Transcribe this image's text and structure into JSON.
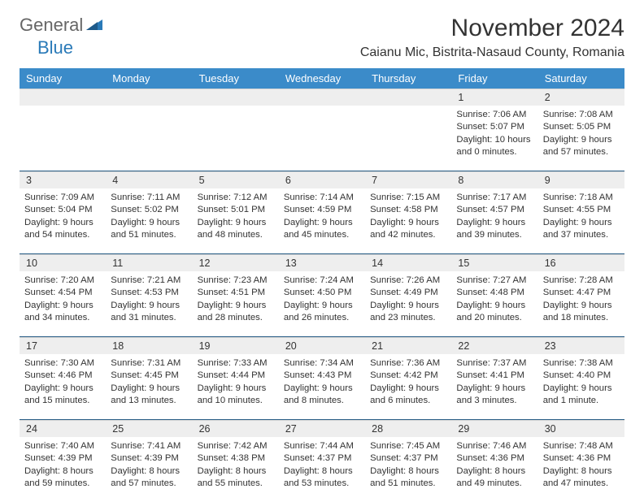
{
  "brand": {
    "part1": "General",
    "part2": "Blue"
  },
  "title": "November 2024",
  "location": "Caianu Mic, Bistrita-Nasaud County, Romania",
  "colors": {
    "header_bg": "#3b8bc9",
    "header_fg": "#ffffff",
    "daynum_bg": "#eeeeee",
    "week_border": "#2a5f88",
    "text": "#333333"
  },
  "day_headers": [
    "Sunday",
    "Monday",
    "Tuesday",
    "Wednesday",
    "Thursday",
    "Friday",
    "Saturday"
  ],
  "weeks": [
    [
      {
        "n": "",
        "sr": "",
        "ss": "",
        "dl": ""
      },
      {
        "n": "",
        "sr": "",
        "ss": "",
        "dl": ""
      },
      {
        "n": "",
        "sr": "",
        "ss": "",
        "dl": ""
      },
      {
        "n": "",
        "sr": "",
        "ss": "",
        "dl": ""
      },
      {
        "n": "",
        "sr": "",
        "ss": "",
        "dl": ""
      },
      {
        "n": "1",
        "sr": "Sunrise: 7:06 AM",
        "ss": "Sunset: 5:07 PM",
        "dl": "Daylight: 10 hours and 0 minutes."
      },
      {
        "n": "2",
        "sr": "Sunrise: 7:08 AM",
        "ss": "Sunset: 5:05 PM",
        "dl": "Daylight: 9 hours and 57 minutes."
      }
    ],
    [
      {
        "n": "3",
        "sr": "Sunrise: 7:09 AM",
        "ss": "Sunset: 5:04 PM",
        "dl": "Daylight: 9 hours and 54 minutes."
      },
      {
        "n": "4",
        "sr": "Sunrise: 7:11 AM",
        "ss": "Sunset: 5:02 PM",
        "dl": "Daylight: 9 hours and 51 minutes."
      },
      {
        "n": "5",
        "sr": "Sunrise: 7:12 AM",
        "ss": "Sunset: 5:01 PM",
        "dl": "Daylight: 9 hours and 48 minutes."
      },
      {
        "n": "6",
        "sr": "Sunrise: 7:14 AM",
        "ss": "Sunset: 4:59 PM",
        "dl": "Daylight: 9 hours and 45 minutes."
      },
      {
        "n": "7",
        "sr": "Sunrise: 7:15 AM",
        "ss": "Sunset: 4:58 PM",
        "dl": "Daylight: 9 hours and 42 minutes."
      },
      {
        "n": "8",
        "sr": "Sunrise: 7:17 AM",
        "ss": "Sunset: 4:57 PM",
        "dl": "Daylight: 9 hours and 39 minutes."
      },
      {
        "n": "9",
        "sr": "Sunrise: 7:18 AM",
        "ss": "Sunset: 4:55 PM",
        "dl": "Daylight: 9 hours and 37 minutes."
      }
    ],
    [
      {
        "n": "10",
        "sr": "Sunrise: 7:20 AM",
        "ss": "Sunset: 4:54 PM",
        "dl": "Daylight: 9 hours and 34 minutes."
      },
      {
        "n": "11",
        "sr": "Sunrise: 7:21 AM",
        "ss": "Sunset: 4:53 PM",
        "dl": "Daylight: 9 hours and 31 minutes."
      },
      {
        "n": "12",
        "sr": "Sunrise: 7:23 AM",
        "ss": "Sunset: 4:51 PM",
        "dl": "Daylight: 9 hours and 28 minutes."
      },
      {
        "n": "13",
        "sr": "Sunrise: 7:24 AM",
        "ss": "Sunset: 4:50 PM",
        "dl": "Daylight: 9 hours and 26 minutes."
      },
      {
        "n": "14",
        "sr": "Sunrise: 7:26 AM",
        "ss": "Sunset: 4:49 PM",
        "dl": "Daylight: 9 hours and 23 minutes."
      },
      {
        "n": "15",
        "sr": "Sunrise: 7:27 AM",
        "ss": "Sunset: 4:48 PM",
        "dl": "Daylight: 9 hours and 20 minutes."
      },
      {
        "n": "16",
        "sr": "Sunrise: 7:28 AM",
        "ss": "Sunset: 4:47 PM",
        "dl": "Daylight: 9 hours and 18 minutes."
      }
    ],
    [
      {
        "n": "17",
        "sr": "Sunrise: 7:30 AM",
        "ss": "Sunset: 4:46 PM",
        "dl": "Daylight: 9 hours and 15 minutes."
      },
      {
        "n": "18",
        "sr": "Sunrise: 7:31 AM",
        "ss": "Sunset: 4:45 PM",
        "dl": "Daylight: 9 hours and 13 minutes."
      },
      {
        "n": "19",
        "sr": "Sunrise: 7:33 AM",
        "ss": "Sunset: 4:44 PM",
        "dl": "Daylight: 9 hours and 10 minutes."
      },
      {
        "n": "20",
        "sr": "Sunrise: 7:34 AM",
        "ss": "Sunset: 4:43 PM",
        "dl": "Daylight: 9 hours and 8 minutes."
      },
      {
        "n": "21",
        "sr": "Sunrise: 7:36 AM",
        "ss": "Sunset: 4:42 PM",
        "dl": "Daylight: 9 hours and 6 minutes."
      },
      {
        "n": "22",
        "sr": "Sunrise: 7:37 AM",
        "ss": "Sunset: 4:41 PM",
        "dl": "Daylight: 9 hours and 3 minutes."
      },
      {
        "n": "23",
        "sr": "Sunrise: 7:38 AM",
        "ss": "Sunset: 4:40 PM",
        "dl": "Daylight: 9 hours and 1 minute."
      }
    ],
    [
      {
        "n": "24",
        "sr": "Sunrise: 7:40 AM",
        "ss": "Sunset: 4:39 PM",
        "dl": "Daylight: 8 hours and 59 minutes."
      },
      {
        "n": "25",
        "sr": "Sunrise: 7:41 AM",
        "ss": "Sunset: 4:39 PM",
        "dl": "Daylight: 8 hours and 57 minutes."
      },
      {
        "n": "26",
        "sr": "Sunrise: 7:42 AM",
        "ss": "Sunset: 4:38 PM",
        "dl": "Daylight: 8 hours and 55 minutes."
      },
      {
        "n": "27",
        "sr": "Sunrise: 7:44 AM",
        "ss": "Sunset: 4:37 PM",
        "dl": "Daylight: 8 hours and 53 minutes."
      },
      {
        "n": "28",
        "sr": "Sunrise: 7:45 AM",
        "ss": "Sunset: 4:37 PM",
        "dl": "Daylight: 8 hours and 51 minutes."
      },
      {
        "n": "29",
        "sr": "Sunrise: 7:46 AM",
        "ss": "Sunset: 4:36 PM",
        "dl": "Daylight: 8 hours and 49 minutes."
      },
      {
        "n": "30",
        "sr": "Sunrise: 7:48 AM",
        "ss": "Sunset: 4:36 PM",
        "dl": "Daylight: 8 hours and 47 minutes."
      }
    ]
  ]
}
